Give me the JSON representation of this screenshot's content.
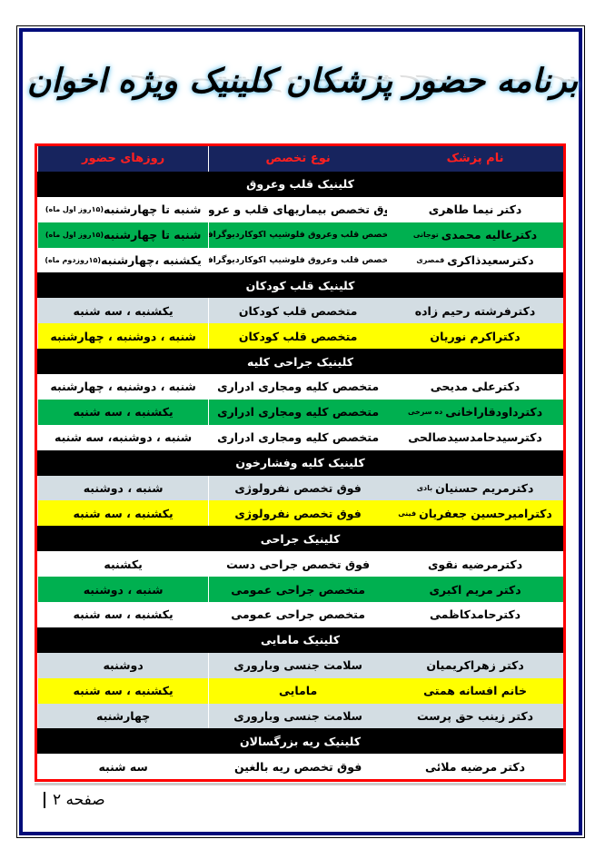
{
  "title": "برنامه حضور پزشکان کلینیک ویژه اخوان",
  "colors": {
    "header_bg": "#17245e",
    "header_text": "#ff2020",
    "section_bg": "#000000",
    "green": "#00b050",
    "yellow": "#ffff00",
    "gray": "#d3dde3",
    "table_border": "#ff0000",
    "page_border": "#000c7a"
  },
  "table": {
    "headers": [
      "نام پزشک",
      "نوع تخصص",
      "روزهای حضور"
    ],
    "sections": [
      {
        "name": "کلینیک قلب وعروق",
        "rows": [
          {
            "doctor": "دکتر نیما طاهری",
            "sup": "",
            "specialty": "فوق تخصص بیماریهای قلب و عروق",
            "days": "شنبه تا چهارشنبه",
            "days_note": "(۱۵روز اول ماه)",
            "bg": "white"
          },
          {
            "doctor": "دکترعالیه محمدی",
            "sup": "توجانی",
            "specialty": "متخصص قلب وعروق فلوشیپ اکوکاردیوگرافی",
            "days": "شنبه تا چهارشنبه",
            "days_note": "(۱۵روز اول ماه)",
            "bg": "green",
            "spec_small": true
          },
          {
            "doctor": "دکترسعیدذاکری",
            "sup": "قمصری",
            "specialty": "متخصص قلب وعروق فلوشیپ اکوکاردیوگرافی",
            "days": "یکشنبه ،چهارشنبه",
            "days_note": "(۱۵روزدوم ماه)",
            "bg": "white",
            "spec_small": true
          }
        ]
      },
      {
        "name": "کلینیک قلب کودکان",
        "rows": [
          {
            "doctor": "دکترفرشته رحیم زاده",
            "sup": "",
            "specialty": "متخصص قلب کودکان",
            "days": "یکشنبه ، سه شنبه",
            "bg": "gray"
          },
          {
            "doctor": "دکتراکرم نوریان",
            "sup": "",
            "specialty": "متخصص قلب کودکان",
            "days": "شنبه ، دوشنبه ، چهارشنبه",
            "bg": "yellow"
          }
        ]
      },
      {
        "name": "کلینیک جراحی کلیه",
        "rows": [
          {
            "doctor": "دکترعلی مدیحی",
            "sup": "",
            "specialty": "متخصص کلیه ومجاری ادراری",
            "days": "شنبه ، دوشنبه ، چهارشنبه",
            "bg": "white"
          },
          {
            "doctor": "دکترداودقاراخانی",
            "sup": "ده سرخی",
            "specialty": "متخصص کلیه ومجاری ادراری",
            "days": "یکشنبه ، سه شنبه",
            "bg": "green"
          },
          {
            "doctor": "دکترسیدحامدسیدصالحی",
            "sup": "",
            "specialty": "متخصص کلیه ومجاری ادراری",
            "days": "شنبه ، دوشنبه، سه شنبه",
            "bg": "white"
          }
        ]
      },
      {
        "name": "کلینیک کلیه وفشارخون",
        "rows": [
          {
            "doctor": "دکترمریم حسنیان",
            "sup": "بادی",
            "specialty": "فوق تخصص  نفرولوژی",
            "days": "شنبه ، دوشنبه",
            "bg": "gray"
          },
          {
            "doctor": "دکترامیرحسین جعفریان",
            "sup": "فینی",
            "specialty": "فوق تخصص  نفرولوژی",
            "days": "یکشنبه ، سه شنبه",
            "bg": "yellow"
          }
        ]
      },
      {
        "name": "کلینیک جراحی",
        "rows": [
          {
            "doctor": "دکترمرضیه نقوی",
            "sup": "",
            "specialty": "فوق تخصص جراحی دست",
            "days": "یکشنبه",
            "bg": "white"
          },
          {
            "doctor": "دکتر مریم اکبری",
            "sup": "",
            "specialty": "متخصص جراحی عمومی",
            "days": "شنبه ، دوشنبه",
            "bg": "green"
          },
          {
            "doctor": "دکترحامدکاظمی",
            "sup": "",
            "specialty": "متخصص جراحی عمومی",
            "days": "یکشنبه ، سه شنبه",
            "bg": "white"
          }
        ]
      },
      {
        "name": "کلینیک مامایی",
        "rows": [
          {
            "doctor": "دکتر زهراکریمیان",
            "sup": "",
            "specialty": "سلامت جنسی وباروری",
            "days": "دوشنبه",
            "bg": "gray"
          },
          {
            "doctor": "خانم افسانه همتی",
            "sup": "",
            "specialty": "مامایی",
            "days": "یکشنبه ، سه شنبه",
            "bg": "yellow"
          },
          {
            "doctor": "دکتر زینب حق پرست",
            "sup": "",
            "specialty": "سلامت جنسی وباروری",
            "days": "چهارشنبه",
            "bg": "gray"
          }
        ]
      },
      {
        "name": "کلینیک ریه بزرگسالان",
        "rows": [
          {
            "doctor": "دکتر مرضیه ملائی",
            "sup": "",
            "specialty": "فوق تخصص ریه بالغین",
            "days": "سه شنبه",
            "bg": "white"
          }
        ]
      }
    ]
  },
  "footer": {
    "page_label": "صفحه ۲"
  }
}
